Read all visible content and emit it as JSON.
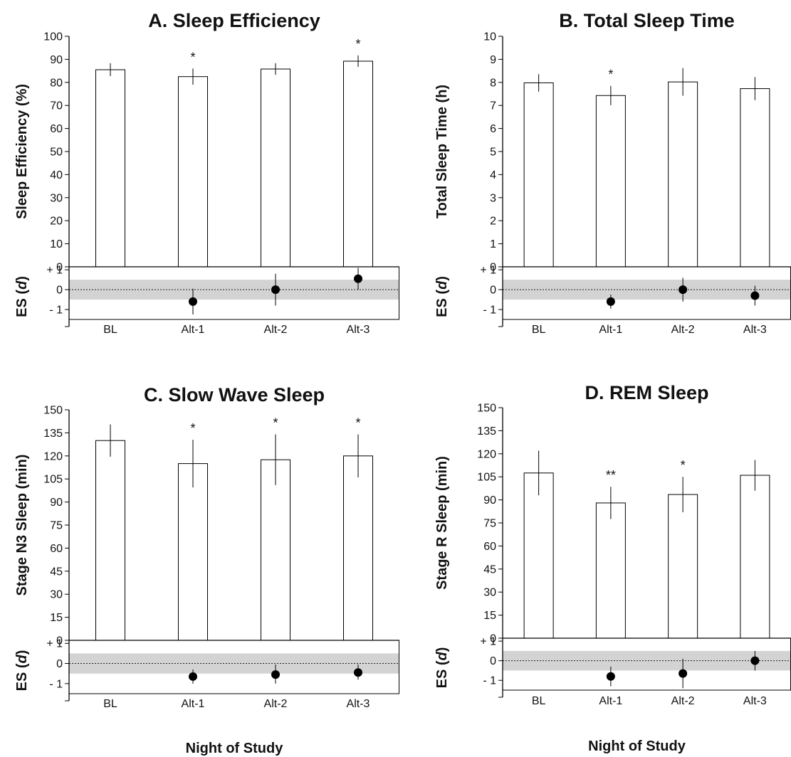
{
  "chart_data": [
    {
      "type": "bar",
      "title": "A. Sleep Efficiency",
      "ylabel": "Sleep Efficiency (%)",
      "categories": [
        "BL",
        "Alt-1",
        "Alt-2",
        "Alt-3"
      ],
      "values": [
        85.5,
        82.5,
        85.8,
        89.2
      ],
      "error": [
        2.8,
        3.5,
        2.5,
        2.5
      ],
      "ylim": [
        0,
        100
      ],
      "yticks": [
        "0",
        "10",
        "20",
        "30",
        "40",
        "50",
        "60",
        "70",
        "80",
        "90",
        "100"
      ],
      "significance": [
        "",
        "*",
        "",
        "*"
      ],
      "es_label": [
        "ES (",
        "d",
        ")"
      ],
      "es_ticks": [
        "+ 1",
        "0",
        "- 1"
      ],
      "es_values": [
        null,
        -0.6,
        0.0,
        0.55
      ],
      "es_ci": [
        null,
        [
          -1.25,
          0.05
        ],
        [
          -0.8,
          0.8
        ],
        [
          0.0,
          1.1
        ]
      ],
      "es_band": [
        -0.5,
        0.5
      ],
      "es_ylim": [
        -1.5,
        1.15
      ],
      "xlabel": ""
    },
    {
      "type": "bar",
      "title": "B. Total Sleep Time",
      "ylabel": "Total Sleep Time (h)",
      "categories": [
        "BL",
        "Alt-1",
        "Alt-2",
        "Alt-3"
      ],
      "values": [
        7.98,
        7.43,
        8.02,
        7.73
      ],
      "error": [
        0.38,
        0.42,
        0.6,
        0.5
      ],
      "ylim": [
        0,
        10
      ],
      "yticks": [
        "0",
        "1",
        "2",
        "3",
        "4",
        "5",
        "6",
        "7",
        "8",
        "9",
        "10"
      ],
      "significance": [
        "",
        "*",
        "",
        ""
      ],
      "es_label": [
        "ES (",
        "d",
        ")"
      ],
      "es_ticks": [
        "+ 1",
        "0",
        "- 1"
      ],
      "es_values": [
        null,
        -0.6,
        0.0,
        -0.3
      ],
      "es_ci": [
        null,
        [
          -0.95,
          -0.25
        ],
        [
          -0.6,
          0.6
        ],
        [
          -0.8,
          0.2
        ]
      ],
      "es_band": [
        -0.5,
        0.5
      ],
      "es_ylim": [
        -1.5,
        1.15
      ],
      "xlabel": ""
    },
    {
      "type": "bar",
      "title": "C. Slow Wave Sleep",
      "ylabel": "Stage N3 Sleep (min)",
      "categories": [
        "BL",
        "Alt-1",
        "Alt-2",
        "Alt-3"
      ],
      "values": [
        130,
        115,
        117.5,
        120
      ],
      "error": [
        10.5,
        15.5,
        16.5,
        14
      ],
      "ylim": [
        0,
        150
      ],
      "yticks": [
        "0",
        "15",
        "30",
        "45",
        "60",
        "75",
        "90",
        "105",
        "120",
        "135",
        "150"
      ],
      "significance": [
        "",
        "*",
        "*",
        "*"
      ],
      "es_label": [
        "ES (",
        "d",
        ")"
      ],
      "es_ticks": [
        "+ 1",
        "0",
        "- 1"
      ],
      "es_values": [
        null,
        -0.65,
        -0.55,
        -0.45
      ],
      "es_ci": [
        null,
        [
          -1.0,
          -0.3
        ],
        [
          -1.0,
          -0.05
        ],
        [
          -0.8,
          -0.05
        ]
      ],
      "es_band": [
        -0.5,
        0.5
      ],
      "es_ylim": [
        -1.5,
        1.15
      ],
      "xlabel": "Night of Study"
    },
    {
      "type": "bar",
      "title": "D. REM Sleep",
      "ylabel": "Stage R Sleep (min)",
      "categories": [
        "BL",
        "Alt-1",
        "Alt-2",
        "Alt-3"
      ],
      "values": [
        107.5,
        88,
        93.5,
        106
      ],
      "error": [
        14.5,
        10.5,
        11.5,
        10
      ],
      "ylim": [
        0,
        150
      ],
      "yticks": [
        "0",
        "15",
        "30",
        "45",
        "60",
        "75",
        "90",
        "105",
        "120",
        "135",
        "150"
      ],
      "significance": [
        "",
        "**",
        "*",
        ""
      ],
      "es_label": [
        "ES (",
        "d",
        ")"
      ],
      "es_ticks": [
        "+ 1",
        "0",
        "- 1"
      ],
      "es_values": [
        null,
        -0.8,
        -0.65,
        0.0
      ],
      "es_ci": [
        null,
        [
          -1.3,
          -0.3
        ],
        [
          -1.4,
          0.1
        ],
        [
          -0.5,
          0.5
        ]
      ],
      "es_band": [
        -0.5,
        0.5
      ],
      "es_ylim": [
        -1.5,
        1.15
      ],
      "xlabel": "Night of Study"
    }
  ]
}
